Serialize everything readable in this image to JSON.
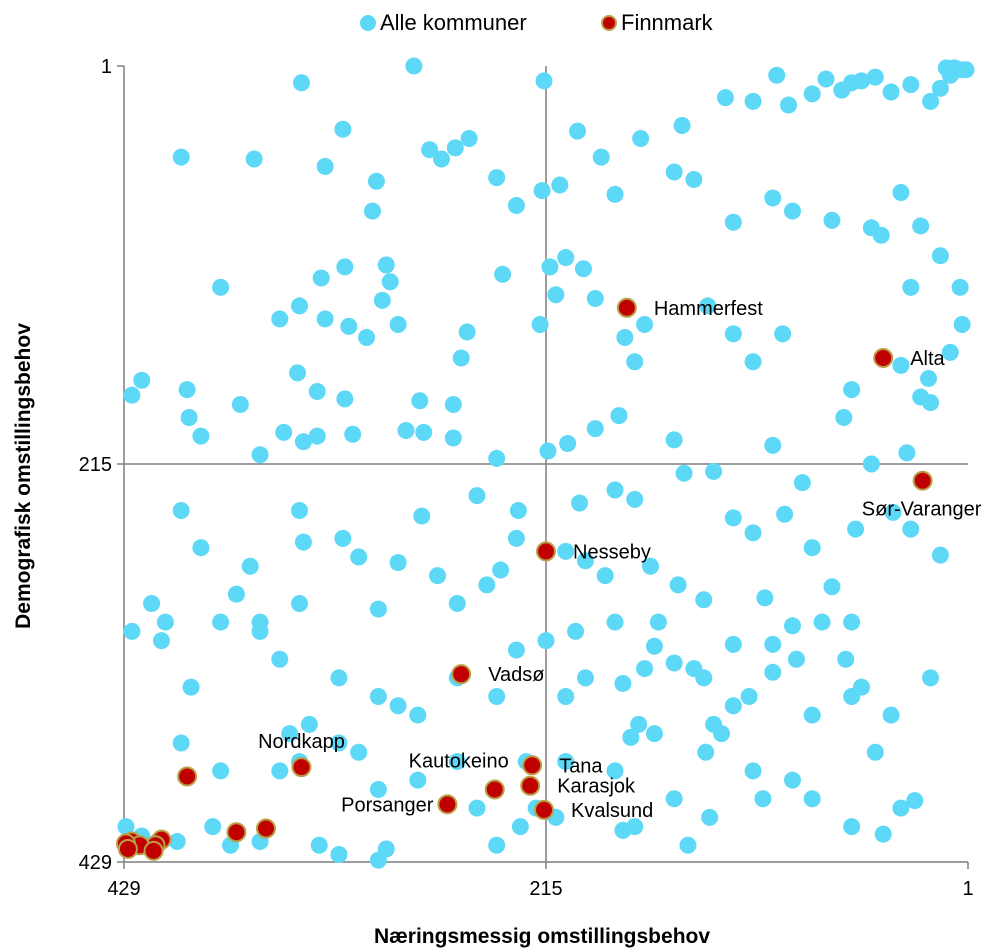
{
  "colors": {
    "all_points": "#5dd8f6",
    "finnmark_points": "#c00000",
    "finnmark_border": "#b9a046",
    "axis_lines": "#7f7f7f"
  },
  "chart_data": {
    "type": "scatter",
    "xlabel": "Næringsmessig omstillingsbehov",
    "ylabel": "Demografisk omstillingsbehov",
    "xlim": [
      429,
      1
    ],
    "ylim": [
      429,
      1
    ],
    "x_ticks": [
      "429",
      "215",
      "1"
    ],
    "y_ticks": [
      "1",
      "215",
      "429"
    ],
    "reference_lines": {
      "x": 215,
      "y": 215
    },
    "legend": {
      "position": "top",
      "entries": [
        "Alle kommuner",
        "Finnmark"
      ]
    },
    "series": [
      {
        "name": "Alle kommuner",
        "points": [
          [
            282,
            1
          ],
          [
            216,
            9
          ],
          [
            2,
            3
          ],
          [
            10,
            6
          ],
          [
            12,
            2
          ],
          [
            8,
            2
          ],
          [
            5,
            3
          ],
          [
            48,
            7
          ],
          [
            73,
            8
          ],
          [
            98,
            6
          ],
          [
            124,
            18
          ],
          [
            92,
            22
          ],
          [
            55,
            9
          ],
          [
            60,
            10
          ],
          [
            65,
            14
          ],
          [
            30,
            11
          ],
          [
            15,
            13
          ],
          [
            20,
            20
          ],
          [
            40,
            15
          ],
          [
            80,
            16
          ],
          [
            110,
            20
          ],
          [
            146,
            33
          ],
          [
            167,
            40
          ],
          [
            199,
            36
          ],
          [
            187,
            50
          ],
          [
            217,
            68
          ],
          [
            208,
            65
          ],
          [
            254,
            40
          ],
          [
            261,
            45
          ],
          [
            268,
            51
          ],
          [
            274,
            46
          ],
          [
            301,
            63
          ],
          [
            303,
            79
          ],
          [
            318,
            35
          ],
          [
            363,
            51
          ],
          [
            327,
            55
          ],
          [
            240,
            61
          ],
          [
            230,
            76
          ],
          [
            180,
            70
          ],
          [
            150,
            58
          ],
          [
            140,
            62
          ],
          [
            120,
            85
          ],
          [
            100,
            72
          ],
          [
            90,
            79
          ],
          [
            70,
            84
          ],
          [
            50,
            88
          ],
          [
            45,
            92
          ],
          [
            35,
            69
          ],
          [
            25,
            87
          ],
          [
            15,
            103
          ],
          [
            5,
            120
          ],
          [
            400,
            50
          ],
          [
            339,
            10
          ],
          [
            380,
            120
          ],
          [
            420,
            170
          ],
          [
            425,
            178
          ],
          [
            397,
            175
          ],
          [
            396,
            190
          ],
          [
            370,
            183
          ],
          [
            350,
            137
          ],
          [
            341,
            166
          ],
          [
            327,
            137
          ],
          [
            315,
            141
          ],
          [
            306,
            147
          ],
          [
            290,
            140
          ],
          [
            298,
            127
          ],
          [
            294,
            117
          ],
          [
            296,
            108
          ],
          [
            317,
            109
          ],
          [
            329,
            115
          ],
          [
            340,
            130
          ],
          [
            331,
            176
          ],
          [
            317,
            180
          ],
          [
            279,
            181
          ],
          [
            262,
            183
          ],
          [
            258,
            158
          ],
          [
            255,
            144
          ],
          [
            237,
            113
          ],
          [
            218,
            140
          ],
          [
            205,
            104
          ],
          [
            213,
            109
          ],
          [
            196,
            110
          ],
          [
            190,
            126
          ],
          [
            210,
            124
          ],
          [
            165,
            140
          ],
          [
            170,
            160
          ],
          [
            175,
            147
          ],
          [
            133,
            130
          ],
          [
            120,
            145
          ],
          [
            95,
            145
          ],
          [
            110,
            160
          ],
          [
            60,
            175
          ],
          [
            35,
            162
          ],
          [
            390,
            200
          ],
          [
            360,
            210
          ],
          [
            348,
            198
          ],
          [
            338,
            203
          ],
          [
            331,
            200
          ],
          [
            313,
            199
          ],
          [
            286,
            197
          ],
          [
            277,
            198
          ],
          [
            262,
            201
          ],
          [
            240,
            212
          ],
          [
            214,
            208
          ],
          [
            204,
            204
          ],
          [
            190,
            196
          ],
          [
            178,
            189
          ],
          [
            150,
            202
          ],
          [
            130,
            219
          ],
          [
            100,
            205
          ],
          [
            64,
            190
          ],
          [
            50,
            215
          ],
          [
            32,
            209
          ],
          [
            25,
            179
          ],
          [
            20,
            182
          ],
          [
            21,
            169
          ],
          [
            10,
            155
          ],
          [
            4,
            140
          ],
          [
            30,
            120
          ],
          [
            340,
            240
          ],
          [
            338,
            257
          ],
          [
            310,
            265
          ],
          [
            290,
            268
          ],
          [
            278,
            243
          ],
          [
            250,
            232
          ],
          [
            229,
            240
          ],
          [
            198,
            236
          ],
          [
            180,
            229
          ],
          [
            170,
            234
          ],
          [
            145,
            220
          ],
          [
            120,
            244
          ],
          [
            110,
            252
          ],
          [
            94,
            242
          ],
          [
            85,
            225
          ],
          [
            80,
            260
          ],
          [
            58,
            250
          ],
          [
            39,
            241
          ],
          [
            30,
            250
          ],
          [
            15,
            264
          ],
          [
            60,
            300
          ],
          [
            70,
            281
          ],
          [
            380,
            300
          ],
          [
            408,
            300
          ],
          [
            360,
            305
          ],
          [
            350,
            320
          ],
          [
            320,
            330
          ],
          [
            300,
            340
          ],
          [
            290,
            345
          ],
          [
            280,
            350
          ],
          [
            260,
            330
          ],
          [
            240,
            340
          ],
          [
            230,
            315
          ],
          [
            215,
            310
          ],
          [
            200,
            305
          ],
          [
            180,
            300
          ],
          [
            160,
            313
          ],
          [
            140,
            325
          ],
          [
            120,
            345
          ],
          [
            100,
            327
          ],
          [
            80,
            350
          ],
          [
            60,
            340
          ],
          [
            40,
            350
          ],
          [
            20,
            330
          ],
          [
            415,
            290
          ],
          [
            410,
            310
          ],
          [
            425,
            305
          ],
          [
            395,
            335
          ],
          [
            400,
            365
          ],
          [
            380,
            380
          ],
          [
            350,
            380
          ],
          [
            340,
            375
          ],
          [
            300,
            390
          ],
          [
            280,
            385
          ],
          [
            250,
            400
          ],
          [
            240,
            420
          ],
          [
            220,
            400
          ],
          [
            205,
            375
          ],
          [
            180,
            380
          ],
          [
            160,
            360
          ],
          [
            150,
            395
          ],
          [
            130,
            355
          ],
          [
            110,
            380
          ],
          [
            90,
            385
          ],
          [
            80,
            395
          ],
          [
            60,
            410
          ],
          [
            35,
            400
          ],
          [
            428,
            410
          ],
          [
            420,
            415
          ],
          [
            412,
            418
          ],
          [
            402,
            418
          ],
          [
            384,
            410
          ],
          [
            375,
            420
          ],
          [
            360,
            418
          ],
          [
            330,
            420
          ],
          [
            320,
            425
          ],
          [
            300,
            428
          ],
          [
            296,
            422
          ],
          [
            228,
            410
          ],
          [
            210,
            405
          ],
          [
            176,
            412
          ],
          [
            170,
            410
          ],
          [
            143,
            420
          ],
          [
            132,
            405
          ],
          [
            28,
            396
          ],
          [
            400,
            240
          ],
          [
            390,
            260
          ],
          [
            372,
            285
          ],
          [
            365,
            270
          ],
          [
            360,
            300
          ],
          [
            340,
            290
          ],
          [
            318,
            255
          ],
          [
            300,
            293
          ],
          [
            270,
            275
          ],
          [
            260,
            290
          ],
          [
            245,
            280
          ],
          [
            238,
            272
          ],
          [
            230,
            255
          ],
          [
            205,
            262
          ],
          [
            195,
            267
          ],
          [
            185,
            275
          ],
          [
            162,
            270
          ],
          [
            148,
            280
          ],
          [
            135,
            288
          ],
          [
            104,
            287
          ],
          [
            90,
            302
          ],
          [
            75,
            300
          ],
          [
            63,
            320
          ],
          [
            55,
            335
          ],
          [
            48,
            370
          ],
          [
            44,
            414
          ],
          [
            105,
            395
          ],
          [
            320,
            365
          ],
          [
            345,
            360
          ],
          [
            335,
            355
          ],
          [
            310,
            370
          ],
          [
            260,
            375
          ],
          [
            225,
            375
          ],
          [
            205,
            340
          ],
          [
            195,
            330
          ],
          [
            176,
            333
          ],
          [
            165,
            325
          ],
          [
            158,
            300
          ],
          [
            150,
            322
          ],
          [
            135,
            330
          ],
          [
            120,
            312
          ],
          [
            100,
            312
          ],
          [
            88,
            320
          ],
          [
            112,
            340
          ],
          [
            126,
            360
          ],
          [
            134,
            370
          ],
          [
            168,
            355
          ],
          [
            172,
            362
          ]
        ]
      },
      {
        "name": "Finnmark",
        "points": [
          [
            174,
            131
          ],
          [
            44,
            158
          ],
          [
            24,
            224
          ],
          [
            215,
            262
          ],
          [
            258,
            328
          ],
          [
            339,
            378
          ],
          [
            222,
            377
          ],
          [
            241,
            390
          ],
          [
            223,
            388
          ],
          [
            265,
            398
          ],
          [
            216,
            401
          ],
          [
            397,
            383
          ],
          [
            425,
            418
          ],
          [
            410,
            417
          ],
          [
            372,
            413
          ],
          [
            357,
            411
          ],
          [
            413,
            420
          ],
          [
            421,
            420
          ],
          [
            428,
            419
          ],
          [
            427,
            422
          ],
          [
            414,
            423
          ]
        ],
        "labels": [
          {
            "i": 0,
            "text": "Hammerfest",
            "pos": "right"
          },
          {
            "i": 1,
            "text": "Alta",
            "pos": "right"
          },
          {
            "i": 2,
            "text": "Sør-Varanger",
            "pos": "below"
          },
          {
            "i": 3,
            "text": "Nesseby",
            "pos": "right"
          },
          {
            "i": 4,
            "text": "Vadsø",
            "pos": "right"
          },
          {
            "i": 5,
            "text": "Nordkapp",
            "pos": "above"
          },
          {
            "i": 6,
            "text": "Tana",
            "pos": "right"
          },
          {
            "i": 7,
            "text": "Kautokeino",
            "pos": "above-left"
          },
          {
            "i": 8,
            "text": "Karasjok",
            "pos": "right"
          },
          {
            "i": 9,
            "text": "Porsanger",
            "pos": "left"
          },
          {
            "i": 10,
            "text": "Kvalsund",
            "pos": "right"
          }
        ]
      }
    ]
  }
}
